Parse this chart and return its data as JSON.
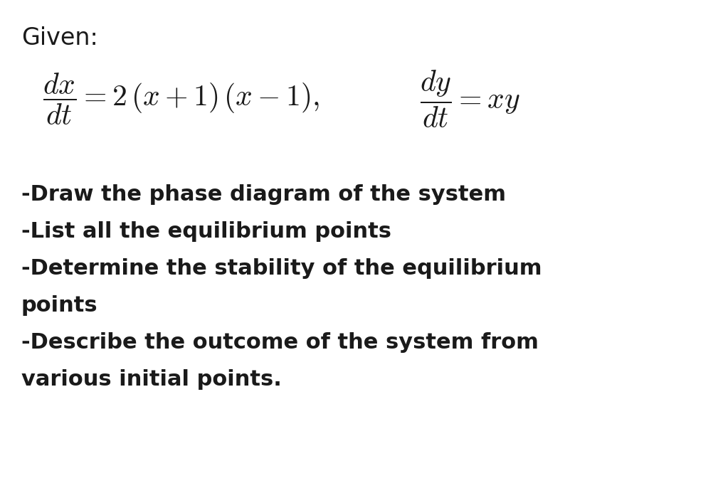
{
  "background_color": "#ffffff",
  "title_text": "Given:",
  "title_fontsize": 24,
  "eq1_text": "$\\dfrac{dx}{dt} = 2\\,(x + 1)\\,(x - 1),$",
  "eq2_text": "$\\dfrac{dy}{dt} = xy$",
  "eq_fontsize": 30,
  "bullet_lines": [
    "-Draw the phase diagram of the system",
    "-List all the equilibrium points",
    "-Determine the stability of the equilibrium",
    "points",
    "-Describe the outcome of the system from",
    "various initial points."
  ],
  "bullet_fontsize": 22,
  "text_color": "#1a1a1a"
}
